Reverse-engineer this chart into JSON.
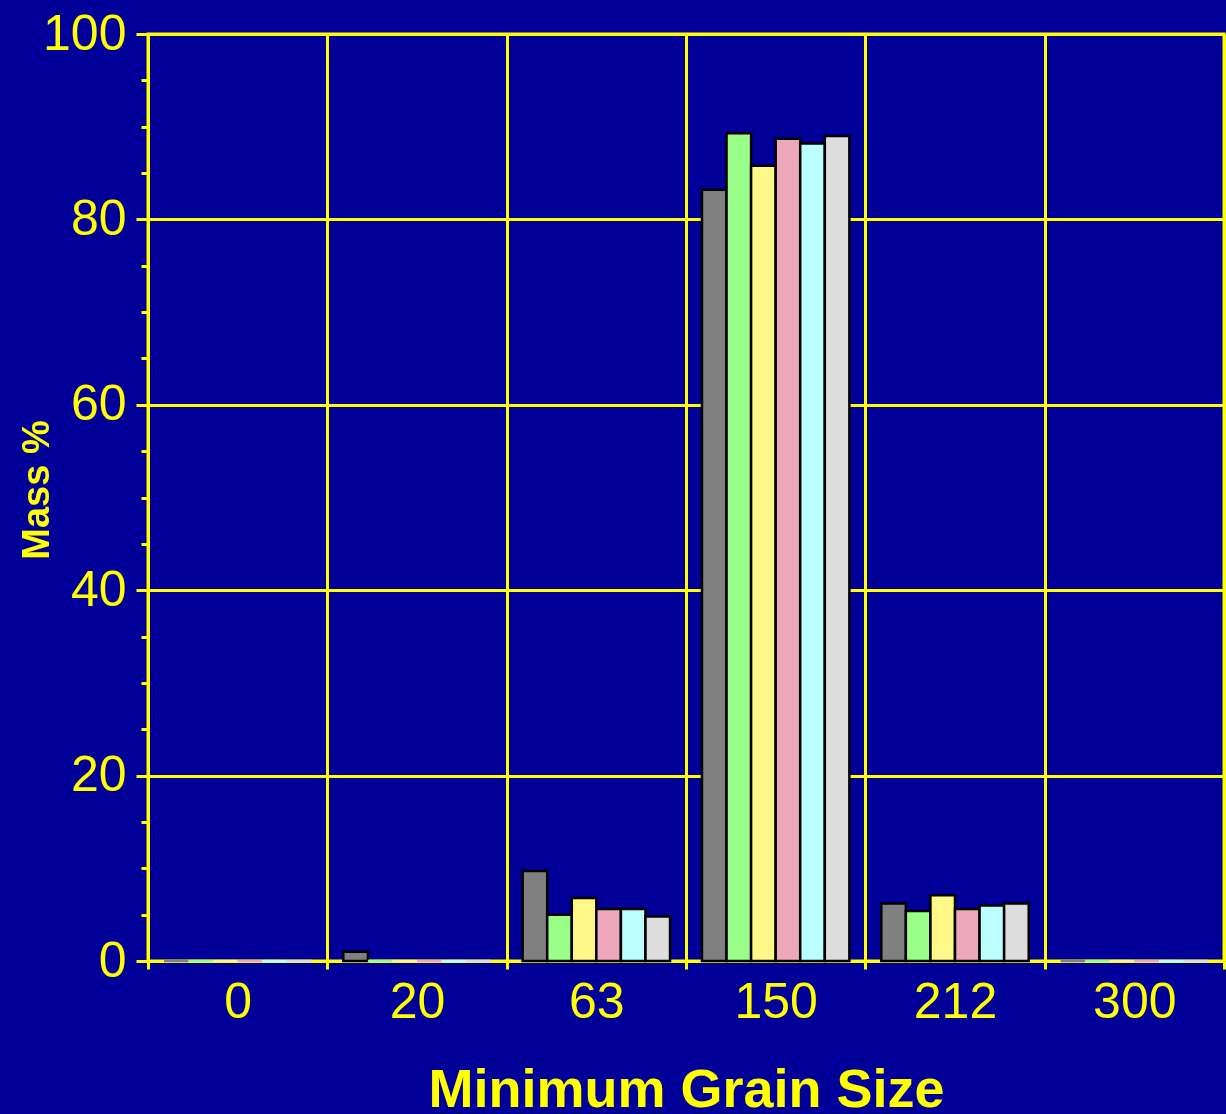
{
  "chart_data": {
    "type": "bar",
    "xlabel": "Minimum Grain Size",
    "ylabel": "Mass %",
    "categories": [
      "0",
      "20",
      "63",
      "150",
      "212",
      "300"
    ],
    "series": [
      {
        "color": "#808080",
        "values": [
          0,
          1.0,
          9.7,
          83.2,
          6.2,
          0
        ]
      },
      {
        "color": "#99ff88",
        "values": [
          0,
          0,
          5.0,
          89.3,
          5.4,
          0
        ]
      },
      {
        "color": "#fff888",
        "values": [
          0,
          0,
          6.8,
          85.8,
          7.1,
          0
        ]
      },
      {
        "color": "#eea8bb",
        "values": [
          0,
          0,
          5.6,
          88.7,
          5.6,
          0
        ]
      },
      {
        "color": "#bbffff",
        "values": [
          0,
          0,
          5.6,
          88.2,
          6.0,
          0
        ]
      },
      {
        "color": "#dddddd",
        "values": [
          0,
          0,
          4.8,
          89.0,
          6.2,
          0
        ]
      }
    ],
    "ylim": [
      0,
      100
    ],
    "yticks": [
      0,
      {
        "value": 5,
        "label": null
      },
      {
        "value": 10,
        "label": null
      },
      {
        "value": 15,
        "label": null
      },
      20,
      {
        "value": 25,
        "label": null
      },
      {
        "value": 30,
        "label": null
      },
      {
        "value": 35,
        "label": null
      },
      40,
      {
        "value": 45,
        "label": null
      },
      {
        "value": 50,
        "label": null
      },
      {
        "value": 55,
        "label": null
      },
      60,
      {
        "value": 65,
        "label": null
      },
      {
        "value": 70,
        "label": null
      },
      {
        "value": 75,
        "label": null
      },
      80,
      {
        "value": 85,
        "label": null
      },
      {
        "value": 90,
        "label": null
      },
      {
        "value": 95,
        "label": null
      },
      100
    ],
    "grid": true
  }
}
